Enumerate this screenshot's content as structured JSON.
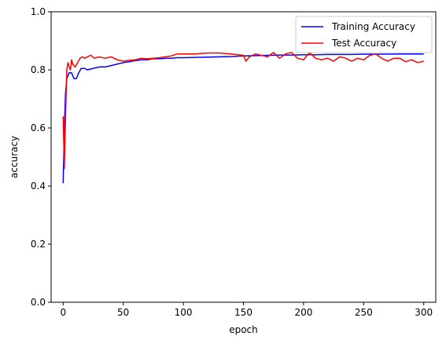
{
  "chart_data": {
    "type": "line",
    "title": "",
    "xlabel": "epoch",
    "ylabel": "accuracy",
    "xlim": [
      -10,
      310
    ],
    "ylim": [
      0.0,
      1.0
    ],
    "xticks": [
      0,
      50,
      100,
      150,
      200,
      250,
      300
    ],
    "yticks": [
      0.0,
      0.2,
      0.4,
      0.6,
      0.8,
      1.0
    ],
    "xtick_labels": [
      "0",
      "50",
      "100",
      "150",
      "200",
      "250",
      "300"
    ],
    "ytick_labels": [
      "0.0",
      "0.2",
      "0.4",
      "0.6",
      "0.8",
      "1.0"
    ],
    "grid": false,
    "legend_position": "upper right",
    "series": [
      {
        "name": "Training Accuracy",
        "color": "#0000ff",
        "x": [
          0,
          1,
          2,
          3,
          5,
          7,
          9,
          11,
          13,
          15,
          18,
          20,
          25,
          30,
          35,
          40,
          45,
          50,
          55,
          60,
          65,
          70,
          75,
          80,
          85,
          90,
          95,
          100,
          110,
          120,
          130,
          140,
          150,
          160,
          170,
          180,
          190,
          200,
          210,
          220,
          230,
          240,
          250,
          260,
          270,
          280,
          290,
          300
        ],
        "y": [
          0.41,
          0.6,
          0.72,
          0.77,
          0.79,
          0.79,
          0.77,
          0.77,
          0.79,
          0.805,
          0.805,
          0.8,
          0.805,
          0.81,
          0.81,
          0.815,
          0.82,
          0.825,
          0.828,
          0.832,
          0.835,
          0.835,
          0.838,
          0.838,
          0.84,
          0.84,
          0.842,
          0.842,
          0.843,
          0.844,
          0.845,
          0.846,
          0.848,
          0.849,
          0.85,
          0.851,
          0.851,
          0.852,
          0.852,
          0.853,
          0.853,
          0.853,
          0.854,
          0.854,
          0.854,
          0.855,
          0.855,
          0.855
        ]
      },
      {
        "name": "Test Accuracy",
        "color": "#ff0000",
        "x": [
          0,
          1,
          2,
          3,
          4,
          5,
          6,
          7,
          8,
          10,
          12,
          14,
          16,
          18,
          20,
          23,
          26,
          30,
          35,
          40,
          45,
          50,
          55,
          60,
          65,
          70,
          75,
          80,
          85,
          90,
          95,
          100,
          110,
          120,
          130,
          140,
          150,
          152,
          155,
          160,
          165,
          170,
          175,
          180,
          185,
          190,
          195,
          200,
          205,
          210,
          215,
          220,
          225,
          230,
          235,
          240,
          245,
          250,
          255,
          260,
          265,
          270,
          275,
          280,
          285,
          290,
          295,
          300
        ],
        "y": [
          0.64,
          0.46,
          0.64,
          0.8,
          0.825,
          0.81,
          0.8,
          0.835,
          0.82,
          0.81,
          0.825,
          0.84,
          0.845,
          0.84,
          0.845,
          0.85,
          0.84,
          0.845,
          0.84,
          0.845,
          0.835,
          0.83,
          0.833,
          0.835,
          0.84,
          0.838,
          0.84,
          0.842,
          0.845,
          0.848,
          0.855,
          0.855,
          0.855,
          0.858,
          0.858,
          0.855,
          0.85,
          0.83,
          0.845,
          0.855,
          0.85,
          0.845,
          0.86,
          0.84,
          0.855,
          0.86,
          0.84,
          0.835,
          0.86,
          0.84,
          0.835,
          0.84,
          0.83,
          0.845,
          0.84,
          0.83,
          0.84,
          0.835,
          0.85,
          0.855,
          0.84,
          0.83,
          0.84,
          0.84,
          0.828,
          0.835,
          0.825,
          0.83
        ]
      }
    ]
  }
}
